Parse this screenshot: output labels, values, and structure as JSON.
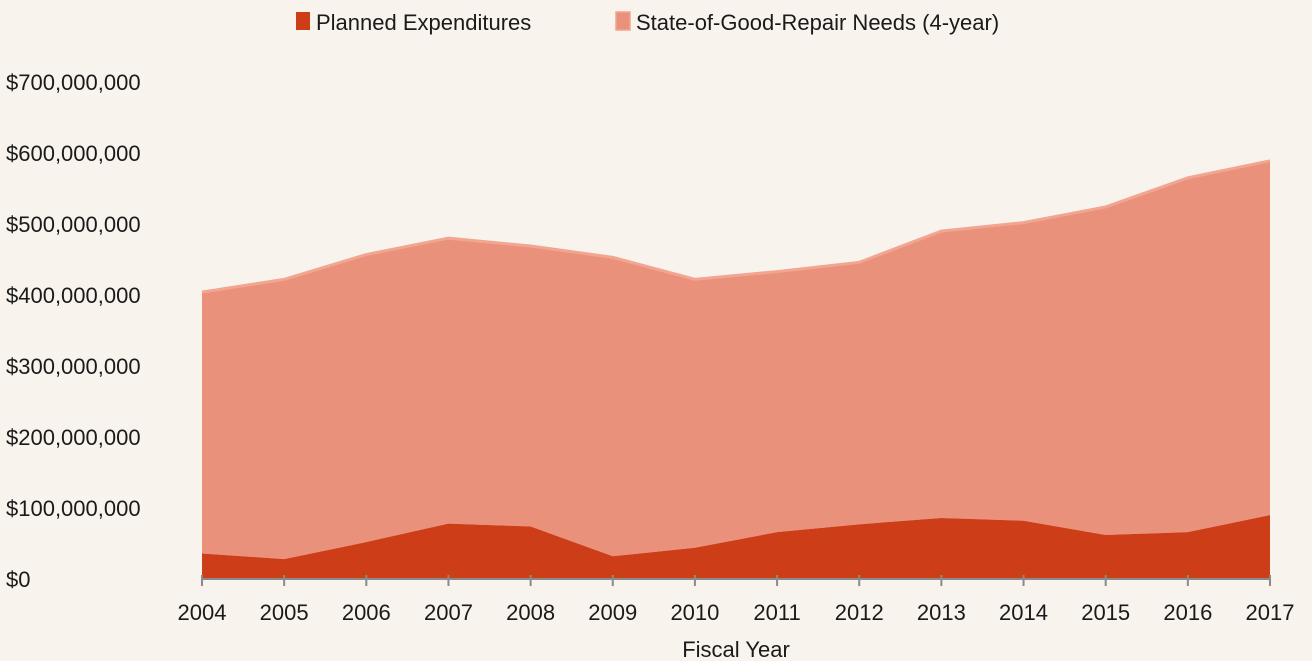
{
  "colors": {
    "background": "#f8f3ec",
    "planned": "#cc3d18",
    "needs_fill": "#e9917a",
    "needs_line": "#f2a591",
    "axis": "#8a8a8a"
  },
  "chart_data": {
    "type": "area",
    "stacked": true,
    "title": "",
    "xlabel": "Fiscal Year",
    "ylabel": "",
    "x": [
      "2004",
      "2005",
      "2006",
      "2007",
      "2008",
      "2009",
      "2010",
      "2011",
      "2012",
      "2013",
      "2014",
      "2015",
      "2016",
      "2017"
    ],
    "ylim": [
      0,
      700000000
    ],
    "yticks": [
      0,
      100000000,
      200000000,
      300000000,
      400000000,
      500000000,
      600000000,
      700000000
    ],
    "ytick_labels": [
      "$0",
      "$100,000,000",
      "$200,000,000",
      "$300,000,000",
      "$400,000,000",
      "$500,000,000",
      "$600,000,000",
      "$700,000,000"
    ],
    "grid": false,
    "legend_position": "top",
    "series": [
      {
        "name": "Planned Expenditures",
        "color": "#cc3d18",
        "values": [
          36000000,
          28000000,
          52000000,
          78000000,
          74000000,
          32000000,
          44000000,
          66000000,
          77000000,
          86000000,
          82000000,
          62000000,
          66000000,
          90000000
        ]
      },
      {
        "name": "State-of-Good-Repair Needs (4-year)",
        "color": "#e9917a",
        "values": [
          404000000,
          422000000,
          457000000,
          480000000,
          469000000,
          453000000,
          422000000,
          433000000,
          446000000,
          490000000,
          502000000,
          524000000,
          565000000,
          589000000
        ]
      }
    ]
  }
}
